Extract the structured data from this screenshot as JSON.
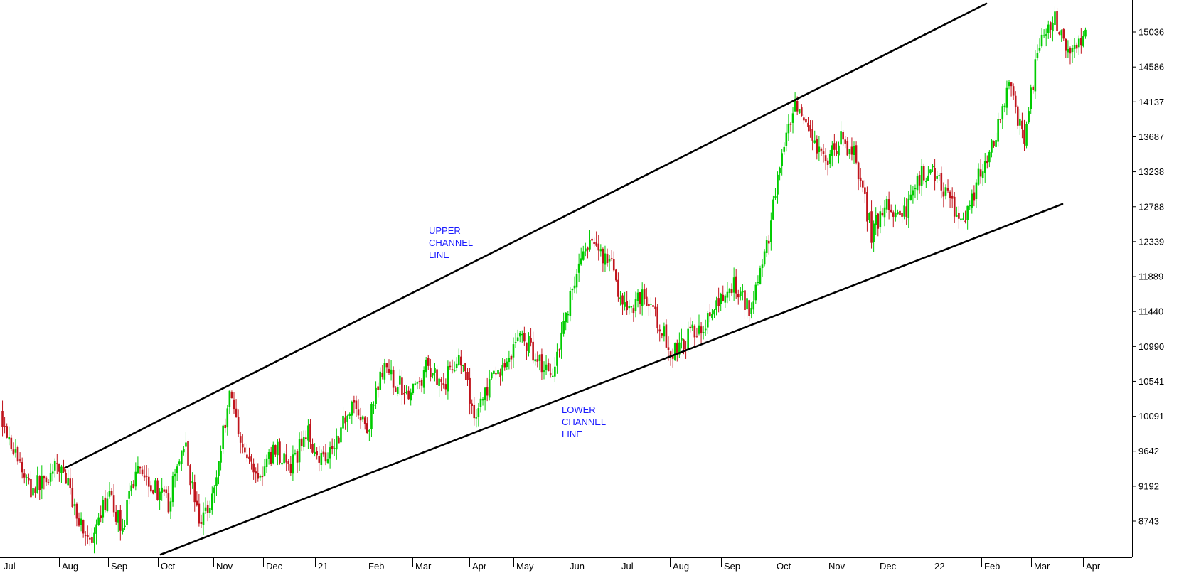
{
  "chart_data": {
    "type": "candlestick",
    "title": "",
    "xlabel": "",
    "ylabel": "",
    "x_tick_labels": [
      "Jul",
      "Aug",
      "Sep",
      "Oct",
      "Nov",
      "Dec",
      "21",
      "Feb",
      "Mar",
      "Apr",
      "May",
      "Jun",
      "Jul",
      "Aug",
      "Sep",
      "Oct",
      "Nov",
      "Dec",
      "22",
      "Feb",
      "Mar",
      "Apr"
    ],
    "y_tick_labels": [
      "15036",
      "14586",
      "14137",
      "13687",
      "13238",
      "12788",
      "12339",
      "11889",
      "11440",
      "10990",
      "10541",
      "10091",
      "9642",
      "9192",
      "8743"
    ],
    "ylim": [
      8290,
      15470
    ],
    "grid": false,
    "colors": {
      "up": "#00cc00",
      "down": "#c0141c",
      "trendline": "#000000",
      "annotation": "#1a1aff",
      "axis": "#000000"
    },
    "trendlines": [
      {
        "name": "upper",
        "start": [
          "Jul 2020",
          9375
        ],
        "end": [
          "Mar 2022",
          15417
        ]
      },
      {
        "name": "lower",
        "start": [
          "Sep 2020",
          8315
        ],
        "end": [
          "Mar 2022",
          12861
        ]
      }
    ],
    "annotations": [
      {
        "lines": [
          "UPPER",
          "CHANNEL",
          "LINE"
        ]
      },
      {
        "lines": [
          "LOWER",
          "CHANNEL",
          "LINE"
        ]
      }
    ],
    "price_path": [
      [
        "Jul 2020",
        10150
      ],
      [
        "Jul 2020",
        9600
      ],
      [
        "Aug 2020",
        9150
      ],
      [
        "Aug 2020",
        9300
      ],
      [
        "Aug 2020",
        9450
      ],
      [
        "Sep 2020",
        8850
      ],
      [
        "Sep 2020",
        8390
      ],
      [
        "Sep 2020",
        9100
      ],
      [
        "Sep 2020",
        8650
      ],
      [
        "Oct 2020",
        9500
      ],
      [
        "Oct 2020",
        9200
      ],
      [
        "Oct 2020",
        8950
      ],
      [
        "Oct 2020",
        9800
      ],
      [
        "Nov 2020",
        8700
      ],
      [
        "Nov 2020",
        9150
      ],
      [
        "Nov 2020",
        10420
      ],
      [
        "Nov 2020",
        9600
      ],
      [
        "Dec 2020",
        9300
      ],
      [
        "Dec 2020",
        9700
      ],
      [
        "Dec 2020",
        9400
      ],
      [
        "Dec 2020",
        9900
      ],
      [
        "Jan 2021",
        9550
      ],
      [
        "Jan 2021",
        9800
      ],
      [
        "Jan 2021",
        10300
      ],
      [
        "Jan 2021",
        9900
      ],
      [
        "Feb 2021",
        10700
      ],
      [
        "Feb 2021",
        10500
      ],
      [
        "Feb 2021",
        10400
      ],
      [
        "Mar 2021",
        10750
      ],
      [
        "Mar 2021",
        10500
      ],
      [
        "Mar 2021",
        10900
      ],
      [
        "Apr 2021",
        10100
      ],
      [
        "Apr 2021",
        10500
      ],
      [
        "Apr 2021",
        10750
      ],
      [
        "Apr 2021",
        11150
      ],
      [
        "May 2021",
        10900
      ],
      [
        "May 2021",
        10600
      ],
      [
        "May 2021",
        11400
      ],
      [
        "Jun 2021",
        12150
      ],
      [
        "Jun 2021",
        12300
      ],
      [
        "Jun 2021",
        12000
      ],
      [
        "Jun 2021",
        11400
      ],
      [
        "Jul 2021",
        11700
      ],
      [
        "Jul 2021",
        11300
      ],
      [
        "Jul 2021",
        10900
      ],
      [
        "Aug 2021",
        11100
      ],
      [
        "Aug 2021",
        11300
      ],
      [
        "Aug 2021",
        11500
      ],
      [
        "Sep 2021",
        11800
      ],
      [
        "Sep 2021",
        11500
      ],
      [
        "Sep 2021",
        12100
      ],
      [
        "Oct 2021",
        13300
      ],
      [
        "Oct 2021",
        14050
      ],
      [
        "Oct 2021",
        13650
      ],
      [
        "Nov 2021",
        13350
      ],
      [
        "Nov 2021",
        13650
      ],
      [
        "Nov 2021",
        13400
      ],
      [
        "Dec 2021",
        12450
      ],
      [
        "Dec 2021",
        12800
      ],
      [
        "Dec 2021",
        12600
      ],
      [
        "Jan 2022",
        13150
      ],
      [
        "Jan 2022",
        13300
      ],
      [
        "Jan 2022",
        12900
      ],
      [
        "Feb 2022",
        12600
      ],
      [
        "Feb 2022",
        13150
      ],
      [
        "Feb 2022",
        13600
      ],
      [
        "Mar 2022",
        14300
      ],
      [
        "Mar 2022",
        13700
      ],
      [
        "Mar 2022",
        14900
      ],
      [
        "Mar 2022",
        15200
      ],
      [
        "Mar 2022",
        14700
      ],
      [
        "Mar 2022",
        15100
      ]
    ]
  }
}
